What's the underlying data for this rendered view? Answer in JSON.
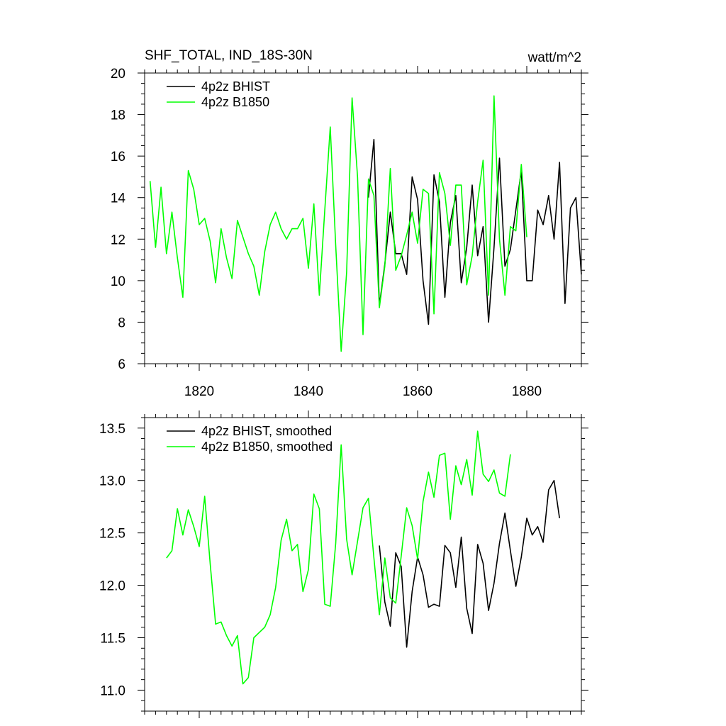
{
  "chart_data": [
    {
      "type": "line",
      "title": "SHF_TOTAL, IND_18S-30N",
      "units": "watt/m^2",
      "xlim": [
        1810,
        1890
      ],
      "ylim": [
        6,
        20
      ],
      "xticks": [
        1820,
        1840,
        1860,
        1880
      ],
      "yticks": [
        6,
        8,
        10,
        12,
        14,
        16,
        18,
        20
      ],
      "legend_position": "top-left",
      "series": [
        {
          "name": "4p2z BHIST",
          "color": "#000000",
          "x": [
            1851,
            1852,
            1853,
            1854,
            1855,
            1856,
            1857,
            1858,
            1859,
            1860,
            1861,
            1862,
            1863,
            1864,
            1865,
            1866,
            1867,
            1868,
            1869,
            1870,
            1871,
            1872,
            1873,
            1874,
            1875,
            1876,
            1877,
            1878,
            1879,
            1880,
            1881,
            1882,
            1883,
            1884,
            1885,
            1886,
            1887,
            1888,
            1889,
            1890
          ],
          "values": [
            14.0,
            16.8,
            8.8,
            10.8,
            13.3,
            11.3,
            11.3,
            10.3,
            15.0,
            13.9,
            10.0,
            7.9,
            15.1,
            13.8,
            9.2,
            12.8,
            14.1,
            9.9,
            11.6,
            14.6,
            11.2,
            12.6,
            8.0,
            11.6,
            15.9,
            10.7,
            11.5,
            13.4,
            15.3,
            10.0,
            10.0,
            13.4,
            12.7,
            14.1,
            12.0,
            15.7,
            8.9,
            13.5,
            14.0,
            10.3
          ]
        },
        {
          "name": "4p2z B1850",
          "color": "#00ff00",
          "x": [
            1811,
            1812,
            1813,
            1814,
            1815,
            1816,
            1817,
            1818,
            1819,
            1820,
            1821,
            1822,
            1823,
            1824,
            1825,
            1826,
            1827,
            1828,
            1829,
            1830,
            1831,
            1832,
            1833,
            1834,
            1835,
            1836,
            1837,
            1838,
            1839,
            1840,
            1841,
            1842,
            1843,
            1844,
            1845,
            1846,
            1847,
            1848,
            1849,
            1850,
            1851,
            1852,
            1853,
            1854,
            1855,
            1856,
            1857,
            1858,
            1859,
            1860,
            1861,
            1862,
            1863,
            1864,
            1865,
            1866,
            1867,
            1868,
            1869,
            1870,
            1871,
            1872,
            1873,
            1874,
            1875,
            1876,
            1877,
            1878,
            1879,
            1880
          ],
          "values": [
            14.8,
            11.6,
            14.5,
            11.3,
            13.3,
            11.1,
            9.2,
            15.3,
            14.4,
            12.7,
            13.0,
            11.9,
            9.9,
            12.5,
            11.1,
            10.1,
            12.9,
            12.1,
            11.3,
            10.7,
            9.3,
            11.4,
            12.7,
            13.3,
            12.5,
            12.0,
            12.5,
            12.5,
            13.0,
            10.6,
            13.7,
            9.3,
            13.4,
            17.4,
            11.7,
            6.6,
            10.4,
            18.8,
            15.0,
            7.4,
            14.9,
            14.1,
            8.7,
            10.7,
            15.4,
            10.5,
            11.2,
            12.2,
            13.3,
            11.8,
            14.4,
            14.2,
            8.4,
            15.2,
            14.2,
            11.7,
            14.6,
            14.6,
            9.8,
            11.2,
            13.8,
            15.8,
            9.3,
            18.9,
            12.0,
            9.3,
            12.6,
            12.4,
            15.6,
            12.1
          ]
        }
      ]
    },
    {
      "type": "line",
      "title": "",
      "xlim": [
        1810,
        1890
      ],
      "ylim": [
        10.8,
        13.6
      ],
      "xticks": [
        1820,
        1840,
        1860,
        1880
      ],
      "yticks": [
        11.0,
        11.5,
        12.0,
        12.5,
        13.0,
        13.5
      ],
      "ytick_labels": [
        "11.0",
        "11.5",
        "12.0",
        "12.5",
        "13.0",
        "13.5"
      ],
      "legend_position": "top-left",
      "series": [
        {
          "name": "4p2z BHIST, smoothed",
          "color": "#000000",
          "x": [
            1853,
            1854,
            1855,
            1856,
            1857,
            1858,
            1859,
            1860,
            1861,
            1862,
            1863,
            1864,
            1865,
            1866,
            1867,
            1868,
            1869,
            1870,
            1871,
            1872,
            1873,
            1874,
            1875,
            1876,
            1877,
            1878,
            1879,
            1880,
            1881,
            1882,
            1883,
            1884,
            1885,
            1886,
            1887
          ],
          "values": [
            12.38,
            11.84,
            11.61,
            12.31,
            12.18,
            11.41,
            11.94,
            12.27,
            12.1,
            11.79,
            11.82,
            11.8,
            12.38,
            12.31,
            11.98,
            12.46,
            11.78,
            11.54,
            12.39,
            12.21,
            11.76,
            12.02,
            12.4,
            12.69,
            12.33,
            11.99,
            12.27,
            12.64,
            12.48,
            12.56,
            12.41,
            12.91,
            13.0,
            12.64,
            null
          ]
        },
        {
          "name": "4p2z B1850, smoothed",
          "color": "#00ff00",
          "x": [
            1814,
            1815,
            1816,
            1817,
            1818,
            1819,
            1820,
            1821,
            1822,
            1823,
            1824,
            1825,
            1826,
            1827,
            1828,
            1829,
            1830,
            1831,
            1832,
            1833,
            1834,
            1835,
            1836,
            1837,
            1838,
            1839,
            1840,
            1841,
            1842,
            1843,
            1844,
            1845,
            1846,
            1847,
            1848,
            1849,
            1850,
            1851,
            1852,
            1853,
            1854,
            1855,
            1856,
            1857,
            1858,
            1859,
            1860,
            1861,
            1862,
            1863,
            1864,
            1865,
            1866,
            1867,
            1868,
            1869,
            1870,
            1871,
            1872,
            1873,
            1874,
            1875,
            1876,
            1877
          ],
          "values": [
            12.26,
            12.33,
            12.73,
            12.48,
            12.72,
            12.56,
            12.37,
            12.85,
            12.21,
            11.63,
            11.65,
            11.52,
            11.42,
            11.52,
            11.06,
            11.12,
            11.5,
            11.55,
            11.6,
            11.72,
            11.98,
            12.43,
            12.63,
            12.33,
            12.39,
            11.94,
            12.15,
            12.87,
            12.73,
            11.82,
            11.8,
            12.4,
            13.34,
            12.44,
            12.1,
            12.42,
            12.74,
            12.83,
            12.26,
            11.72,
            12.26,
            11.88,
            11.83,
            12.28,
            12.74,
            12.57,
            12.25,
            12.8,
            13.08,
            12.84,
            13.24,
            13.26,
            12.63,
            13.14,
            12.96,
            13.2,
            12.86,
            13.47,
            13.06,
            12.99,
            13.1,
            12.88,
            12.85,
            13.25
          ]
        }
      ]
    }
  ]
}
